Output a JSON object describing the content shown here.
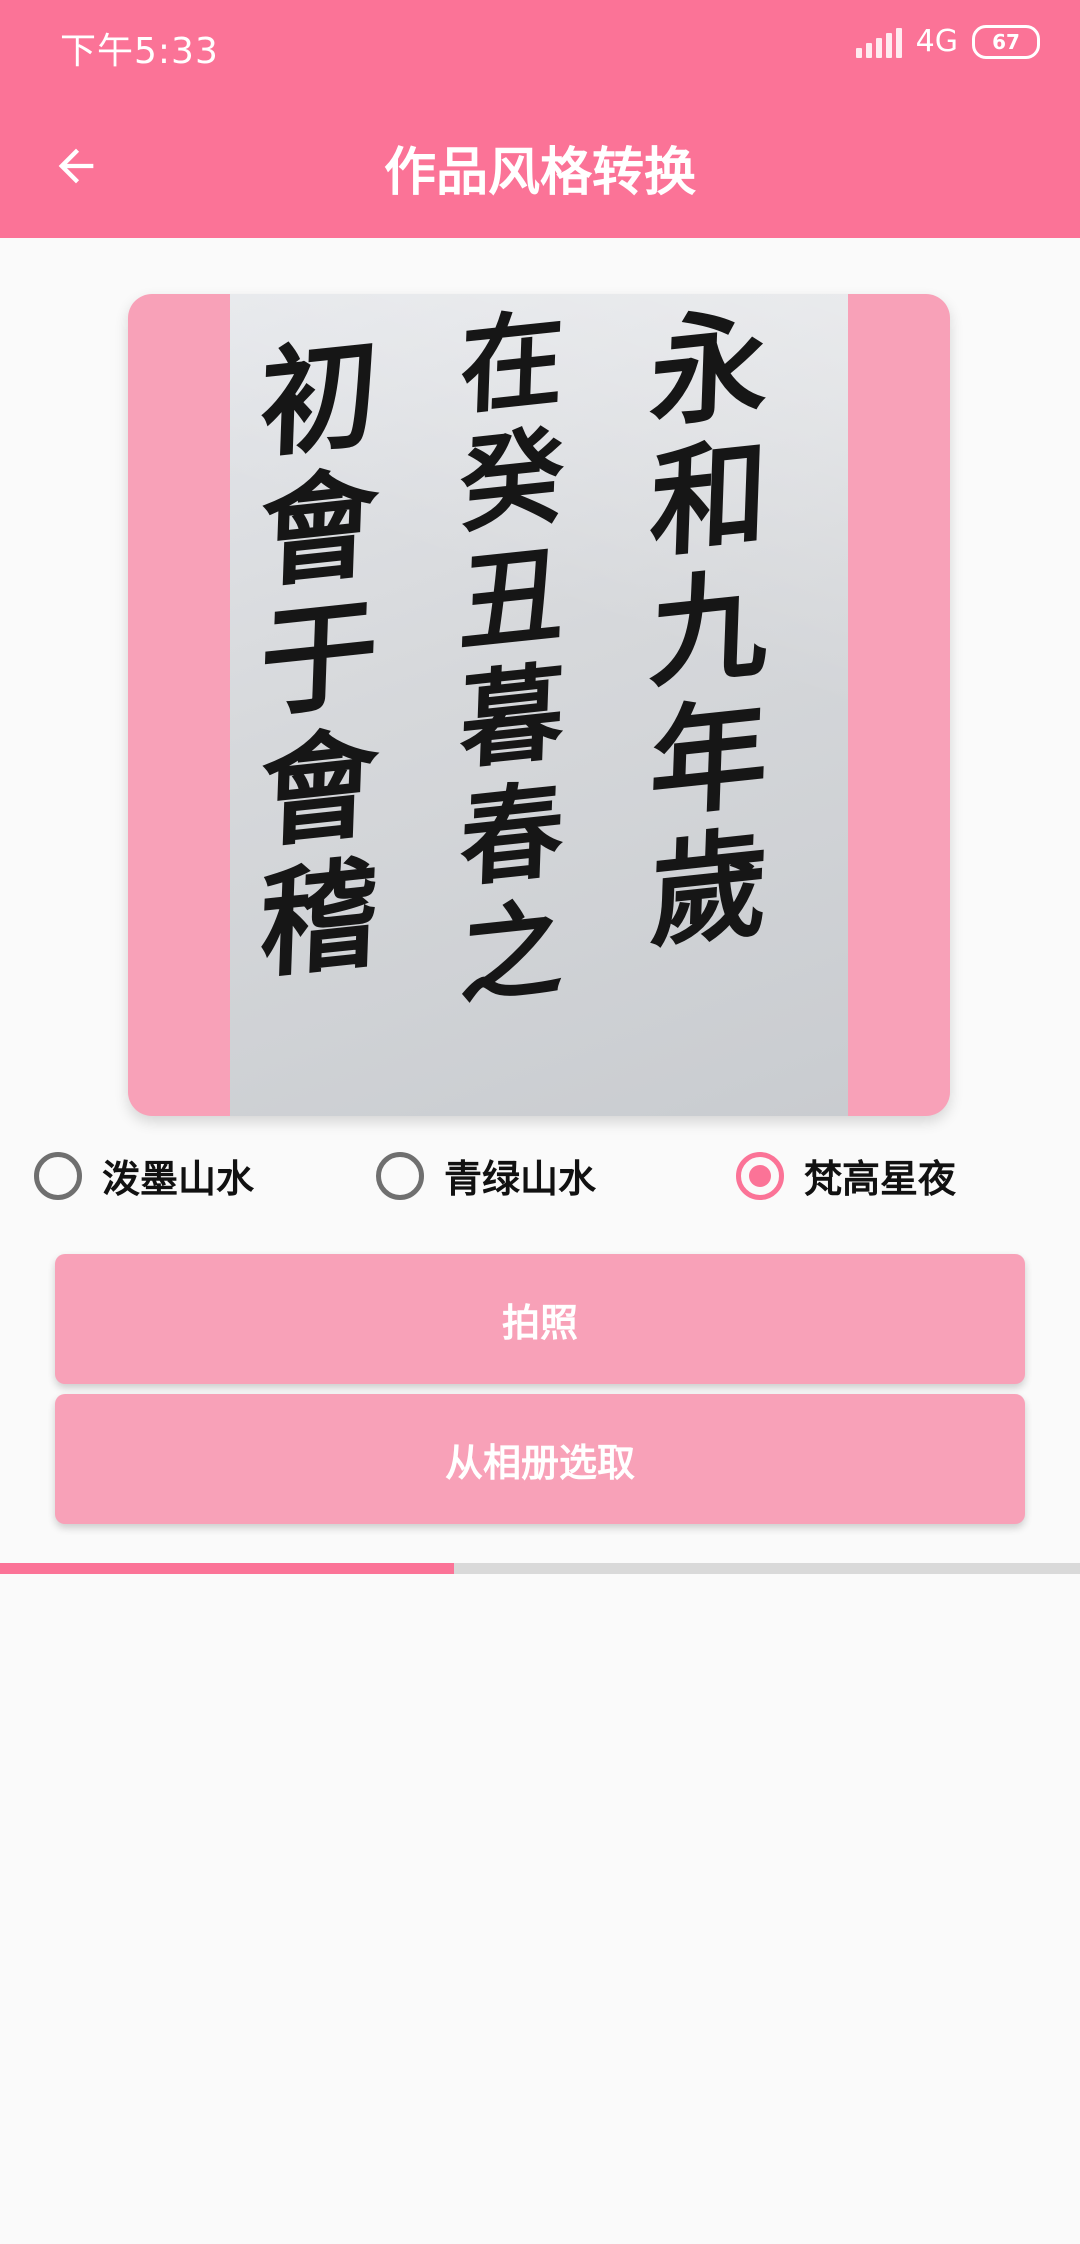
{
  "status_bar": {
    "time": "下午5:33",
    "network": "4G",
    "battery": "67"
  },
  "app_bar": {
    "title": "作品风格转换",
    "back_icon": "arrow-left-icon"
  },
  "image": {
    "description_icon": "calligraphy-photo",
    "columns": [
      [
        "永",
        "和",
        "九",
        "年",
        "歲"
      ],
      [
        "在",
        "癸",
        "丑",
        "暮",
        "春",
        "之"
      ],
      [
        "初",
        "會",
        "于",
        "會",
        "稽"
      ]
    ]
  },
  "style_options": [
    {
      "label": "泼墨山水",
      "checked": false
    },
    {
      "label": "青绿山水",
      "checked": false
    },
    {
      "label": "梵高星夜",
      "checked": true
    }
  ],
  "buttons": {
    "take_photo": "拍照",
    "choose_album": "从相册选取"
  },
  "progress": {
    "value": 0.42
  },
  "colors": {
    "primary": "#fb7397",
    "accent_light": "#f8a1b8"
  }
}
